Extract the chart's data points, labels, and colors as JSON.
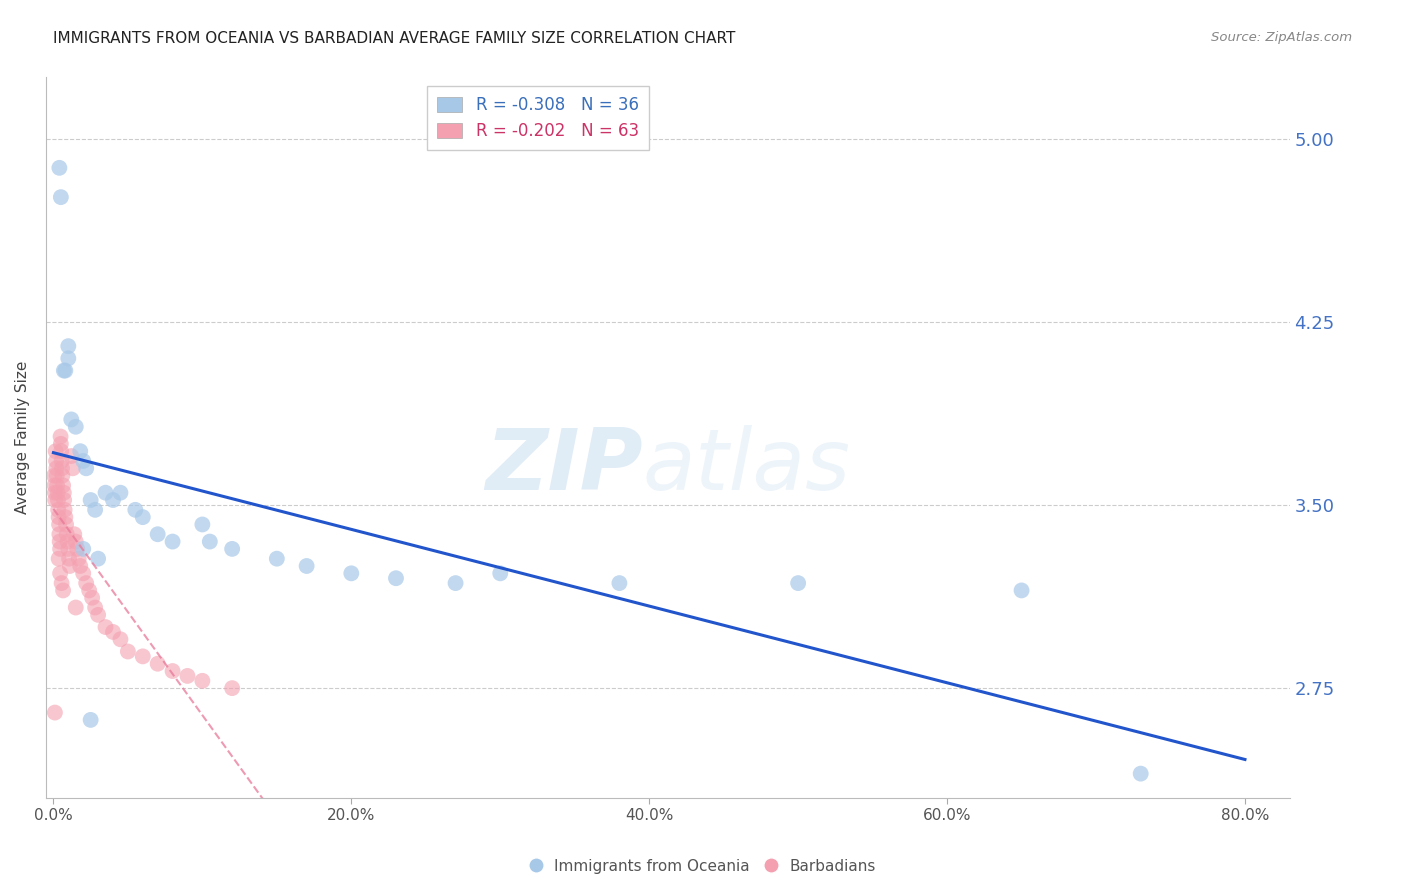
{
  "title": "IMMIGRANTS FROM OCEANIA VS BARBADIAN AVERAGE FAMILY SIZE CORRELATION CHART",
  "source": "Source: ZipAtlas.com",
  "ylabel": "Average Family Size",
  "xlabel_ticks": [
    "0.0%",
    "20.0%",
    "40.0%",
    "60.0%",
    "80.0%"
  ],
  "xlabel_vals": [
    0,
    20,
    40,
    60,
    80
  ],
  "yticks": [
    2.75,
    3.5,
    4.25,
    5.0
  ],
  "ylim": [
    2.3,
    5.25
  ],
  "xlim": [
    -0.5,
    83
  ],
  "watermark": "ZIPatlas",
  "series1_label": "Immigrants from Oceania",
  "series2_label": "Barbadians",
  "color_blue": "#a8c8e8",
  "color_pink": "#f4a0b0",
  "trendline_blue": "#2255cc",
  "trendline_pink": "#e87898",
  "R1": -0.308,
  "N1": 36,
  "R2": -0.202,
  "N2": 63,
  "blue_x": [
    0.4,
    0.5,
    0.7,
    0.8,
    1.0,
    1.0,
    1.2,
    1.5,
    1.8,
    2.0,
    2.2,
    2.5,
    2.8,
    3.5,
    4.0,
    4.5,
    5.5,
    6.0,
    7.0,
    8.0,
    10.0,
    10.5,
    12.0,
    15.0,
    17.0,
    20.0,
    23.0,
    27.0,
    30.0,
    38.0,
    50.0,
    65.0,
    73.0,
    2.0,
    3.0,
    2.5
  ],
  "blue_y": [
    4.88,
    4.76,
    4.05,
    4.05,
    4.15,
    4.1,
    3.85,
    3.82,
    3.72,
    3.68,
    3.65,
    3.52,
    3.48,
    3.55,
    3.52,
    3.55,
    3.48,
    3.45,
    3.38,
    3.35,
    3.42,
    3.35,
    3.32,
    3.28,
    3.25,
    3.22,
    3.2,
    3.18,
    3.22,
    3.18,
    3.18,
    3.15,
    2.4,
    3.32,
    3.28,
    2.62
  ],
  "pink_x": [
    0.05,
    0.08,
    0.1,
    0.12,
    0.15,
    0.18,
    0.2,
    0.22,
    0.25,
    0.28,
    0.3,
    0.32,
    0.35,
    0.38,
    0.4,
    0.42,
    0.45,
    0.48,
    0.5,
    0.52,
    0.55,
    0.58,
    0.6,
    0.65,
    0.7,
    0.72,
    0.75,
    0.8,
    0.85,
    0.9,
    0.95,
    1.0,
    1.05,
    1.1,
    1.2,
    1.3,
    1.4,
    1.5,
    1.6,
    1.7,
    1.8,
    2.0,
    2.2,
    2.4,
    2.6,
    2.8,
    3.0,
    3.5,
    4.0,
    4.5,
    5.0,
    6.0,
    7.0,
    8.0,
    9.0,
    10.0,
    12.0,
    0.35,
    0.45,
    0.55,
    0.65,
    1.5,
    0.1
  ],
  "pink_y": [
    3.62,
    3.58,
    3.55,
    3.52,
    3.72,
    3.68,
    3.65,
    3.62,
    3.58,
    3.55,
    3.52,
    3.48,
    3.45,
    3.42,
    3.38,
    3.35,
    3.32,
    3.78,
    3.75,
    3.72,
    3.68,
    3.65,
    3.62,
    3.58,
    3.55,
    3.52,
    3.48,
    3.45,
    3.42,
    3.38,
    3.35,
    3.32,
    3.28,
    3.25,
    3.7,
    3.65,
    3.38,
    3.35,
    3.32,
    3.28,
    3.25,
    3.22,
    3.18,
    3.15,
    3.12,
    3.08,
    3.05,
    3.0,
    2.98,
    2.95,
    2.9,
    2.88,
    2.85,
    2.82,
    2.8,
    2.78,
    2.75,
    3.28,
    3.22,
    3.18,
    3.15,
    3.08,
    2.65
  ]
}
